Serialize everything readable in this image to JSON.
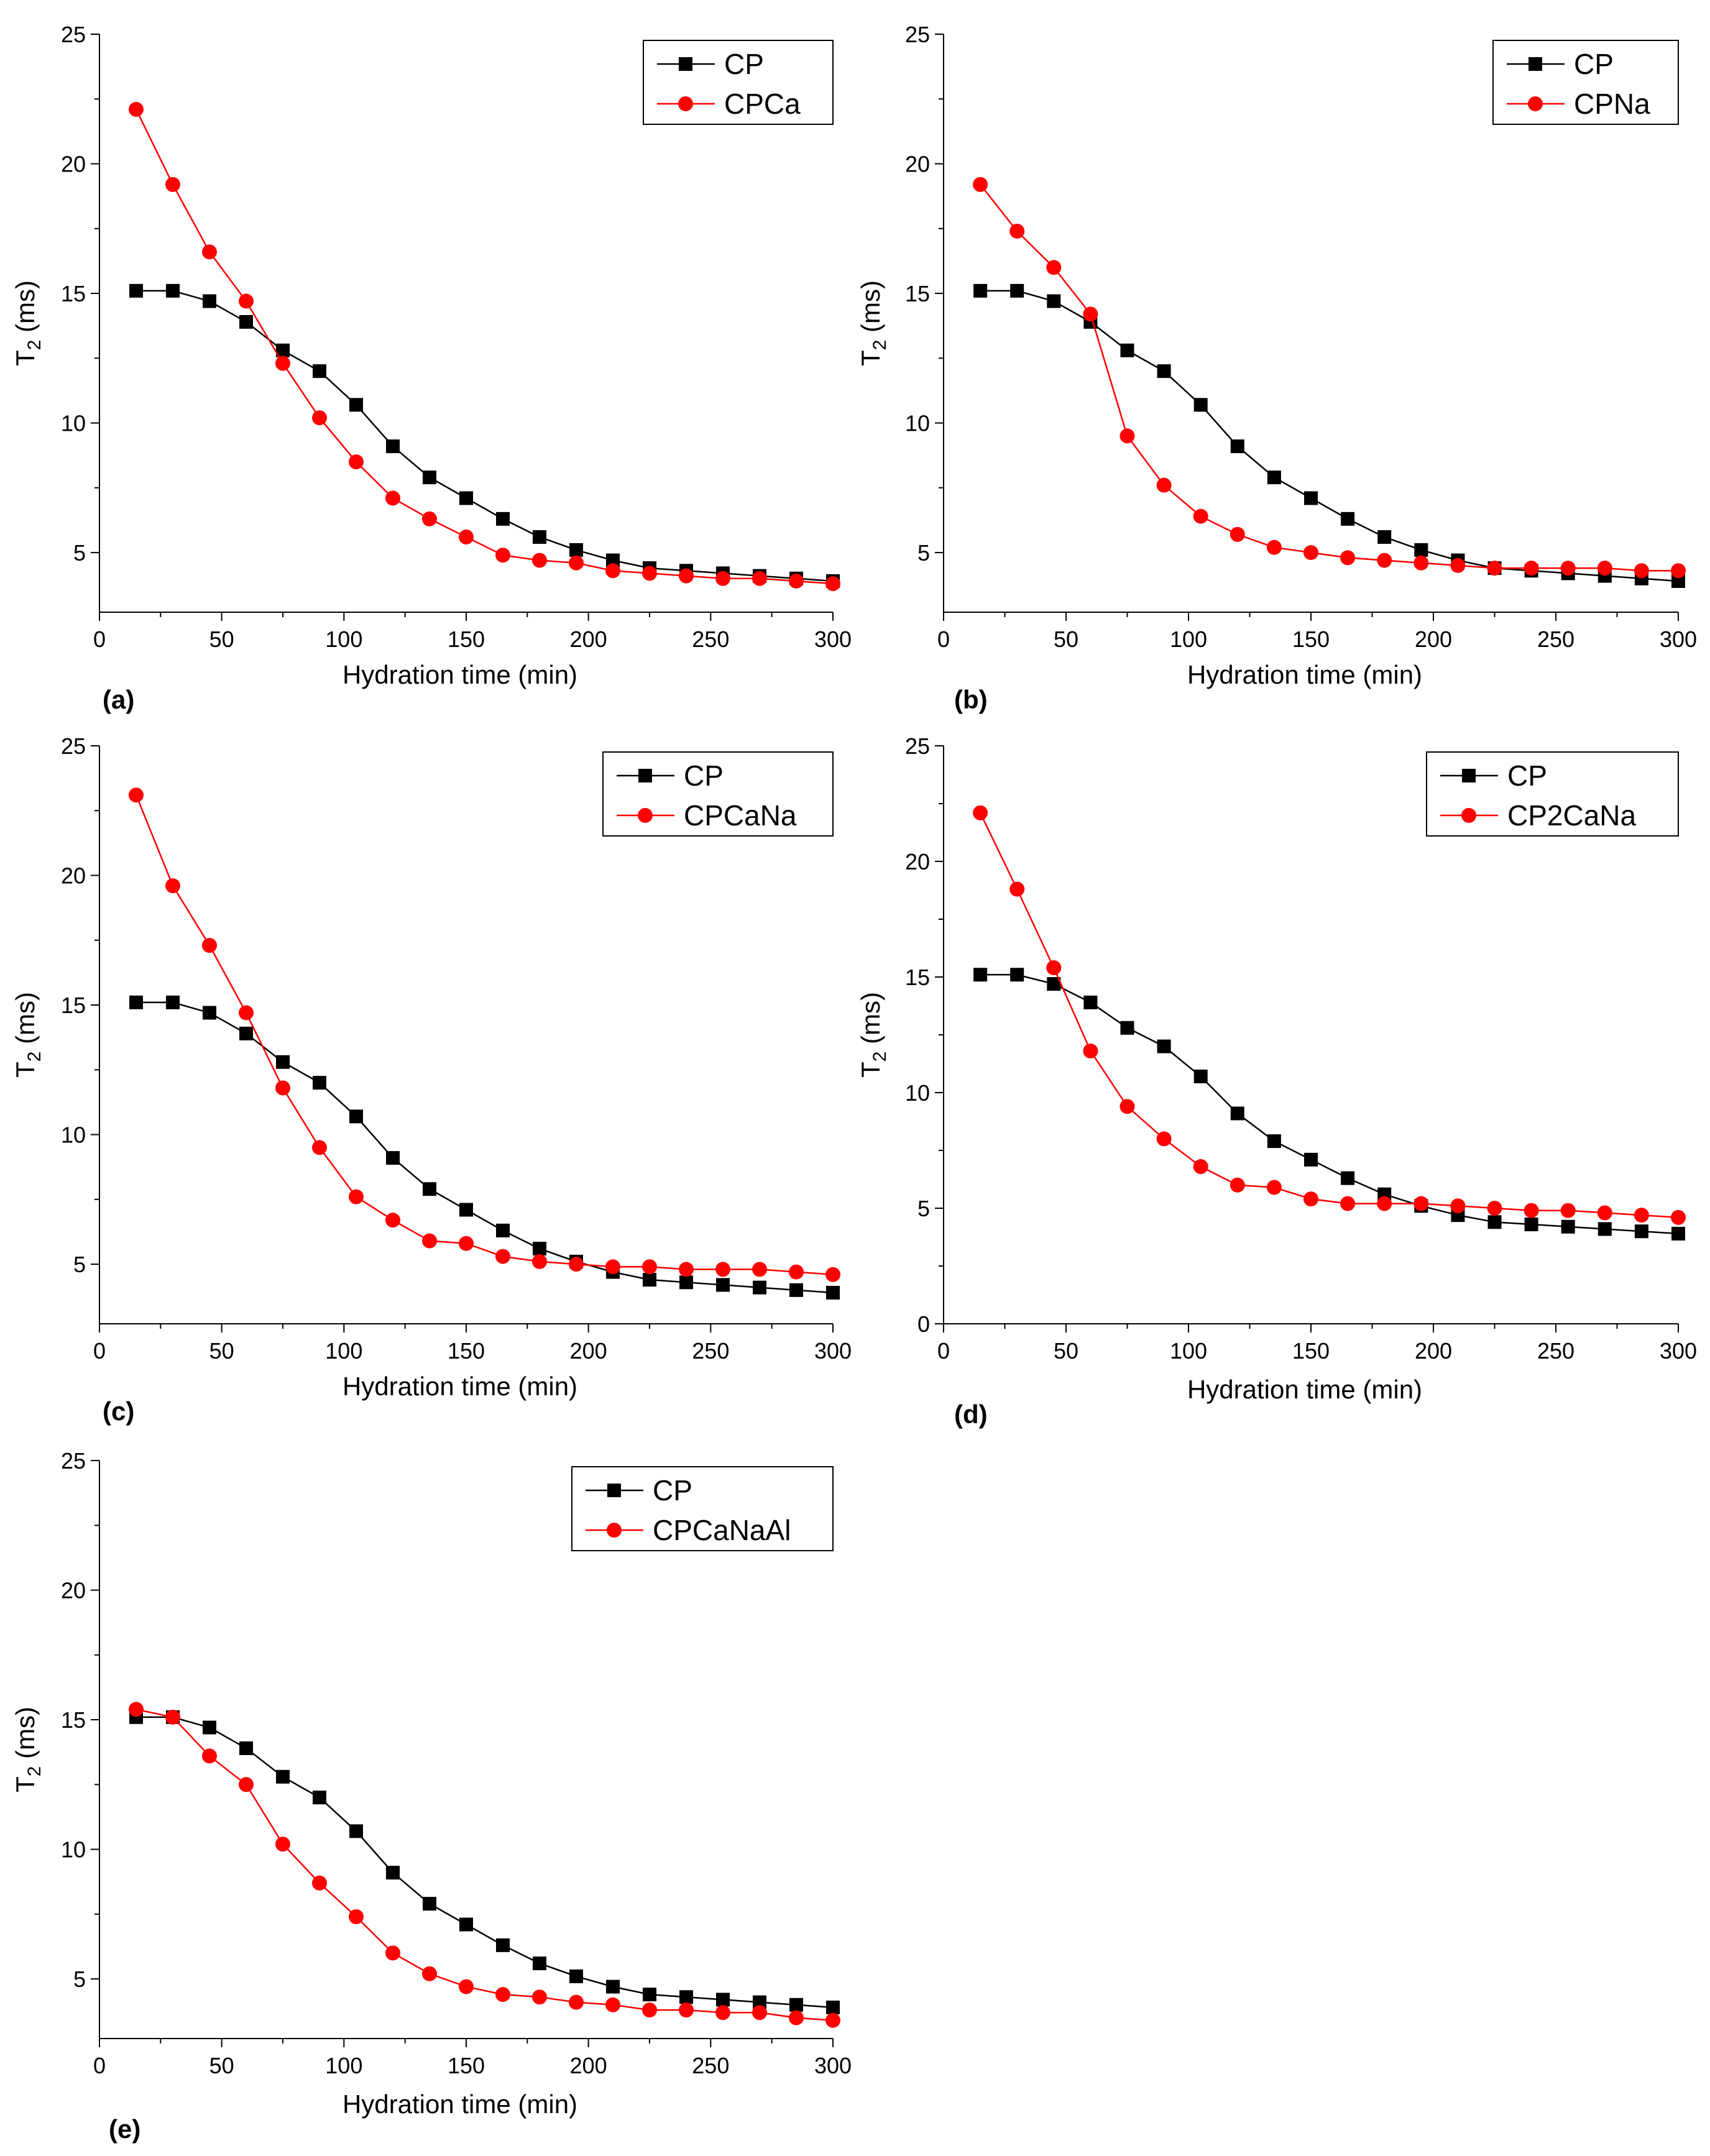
{
  "chart_data": [
    {
      "type": "line",
      "panel_label": "(a)",
      "title": "",
      "xlabel": "Hydration time (min)",
      "ylabel_main": "T",
      "ylabel_sub": "2",
      "ylabel_unit": " (ms)",
      "xlim": [
        0,
        300
      ],
      "ylim": [
        2.7,
        25
      ],
      "xticks": [
        0,
        50,
        100,
        150,
        200,
        250,
        300
      ],
      "yticks": [
        5,
        10,
        15,
        20,
        25
      ],
      "legend_position": "top-right",
      "x": [
        15,
        30,
        45,
        60,
        75,
        90,
        105,
        120,
        135,
        150,
        165,
        180,
        195,
        210,
        225,
        240,
        255,
        270,
        285,
        300
      ],
      "series": [
        {
          "name": "CP",
          "color": "#000000",
          "marker": "square",
          "values": [
            15.1,
            15.1,
            14.7,
            13.9,
            12.8,
            12.0,
            10.7,
            9.1,
            7.9,
            7.1,
            6.3,
            5.6,
            5.1,
            4.7,
            4.4,
            4.3,
            4.2,
            4.1,
            4.0,
            3.9
          ]
        },
        {
          "name": "CPCa",
          "color": "#ff0000",
          "marker": "circle",
          "values": [
            22.1,
            19.2,
            16.6,
            14.7,
            12.3,
            10.2,
            8.5,
            7.1,
            6.3,
            5.6,
            4.9,
            4.7,
            4.6,
            4.3,
            4.2,
            4.1,
            4.0,
            4.0,
            3.9,
            3.8
          ]
        }
      ]
    },
    {
      "type": "line",
      "panel_label": "(b)",
      "title": "",
      "xlabel": "Hydration time (min)",
      "ylabel_main": "T",
      "ylabel_sub": "2",
      "ylabel_unit": " (ms)",
      "xlim": [
        0,
        300
      ],
      "ylim": [
        2.7,
        25
      ],
      "xticks": [
        0,
        50,
        100,
        150,
        200,
        250,
        300
      ],
      "yticks": [
        5,
        10,
        15,
        20,
        25
      ],
      "legend_position": "top-right",
      "x": [
        15,
        30,
        45,
        60,
        75,
        90,
        105,
        120,
        135,
        150,
        165,
        180,
        195,
        210,
        225,
        240,
        255,
        270,
        285,
        300
      ],
      "series": [
        {
          "name": "CP",
          "color": "#000000",
          "marker": "square",
          "values": [
            15.1,
            15.1,
            14.7,
            13.9,
            12.8,
            12.0,
            10.7,
            9.1,
            7.9,
            7.1,
            6.3,
            5.6,
            5.1,
            4.7,
            4.4,
            4.3,
            4.2,
            4.1,
            4.0,
            3.9
          ]
        },
        {
          "name": "CPNa",
          "color": "#ff0000",
          "marker": "circle",
          "values": [
            19.2,
            17.4,
            16.0,
            14.2,
            9.5,
            7.6,
            6.4,
            5.7,
            5.2,
            5.0,
            4.8,
            4.7,
            4.6,
            4.5,
            4.4,
            4.4,
            4.4,
            4.4,
            4.3,
            4.3
          ]
        }
      ]
    },
    {
      "type": "line",
      "panel_label": "(c)",
      "title": "",
      "xlabel": "Hydration time (min)",
      "ylabel_main": "T",
      "ylabel_sub": "2",
      "ylabel_unit": " (ms)",
      "xlim": [
        0,
        300
      ],
      "ylim": [
        2.7,
        25
      ],
      "xticks": [
        0,
        50,
        100,
        150,
        200,
        250,
        300
      ],
      "yticks": [
        5,
        10,
        15,
        20,
        25
      ],
      "legend_position": "top-right",
      "x": [
        15,
        30,
        45,
        60,
        75,
        90,
        105,
        120,
        135,
        150,
        165,
        180,
        195,
        210,
        225,
        240,
        255,
        270,
        285,
        300
      ],
      "series": [
        {
          "name": "CP",
          "color": "#000000",
          "marker": "square",
          "values": [
            15.1,
            15.1,
            14.7,
            13.9,
            12.8,
            12.0,
            10.7,
            9.1,
            7.9,
            7.1,
            6.3,
            5.6,
            5.1,
            4.7,
            4.4,
            4.3,
            4.2,
            4.1,
            4.0,
            3.9
          ]
        },
        {
          "name": "CPCaNa",
          "color": "#ff0000",
          "marker": "circle",
          "values": [
            23.1,
            19.6,
            17.3,
            14.7,
            11.8,
            9.5,
            7.6,
            6.7,
            5.9,
            5.8,
            5.3,
            5.1,
            5.0,
            4.9,
            4.9,
            4.8,
            4.8,
            4.8,
            4.7,
            4.6
          ]
        }
      ]
    },
    {
      "type": "line",
      "panel_label": "(d)",
      "title": "",
      "xlabel": "Hydration time (min)",
      "ylabel_main": "T",
      "ylabel_sub": "2",
      "ylabel_unit": " (ms)",
      "xlim": [
        0,
        300
      ],
      "ylim": [
        0,
        25
      ],
      "xticks": [
        0,
        50,
        100,
        150,
        200,
        250,
        300
      ],
      "yticks": [
        0,
        5,
        10,
        15,
        20,
        25
      ],
      "legend_position": "top-right",
      "x": [
        15,
        30,
        45,
        60,
        75,
        90,
        105,
        120,
        135,
        150,
        165,
        180,
        195,
        210,
        225,
        240,
        255,
        270,
        285,
        300
      ],
      "series": [
        {
          "name": "CP",
          "color": "#000000",
          "marker": "square",
          "values": [
            15.1,
            15.1,
            14.7,
            13.9,
            12.8,
            12.0,
            10.7,
            9.1,
            7.9,
            7.1,
            6.3,
            5.6,
            5.1,
            4.7,
            4.4,
            4.3,
            4.2,
            4.1,
            4.0,
            3.9
          ]
        },
        {
          "name": "CP2CaNa",
          "color": "#ff0000",
          "marker": "circle",
          "values": [
            22.1,
            18.8,
            15.4,
            11.8,
            9.4,
            8.0,
            6.8,
            6.0,
            5.9,
            5.4,
            5.2,
            5.2,
            5.2,
            5.1,
            5.0,
            4.9,
            4.9,
            4.8,
            4.7,
            4.6
          ]
        }
      ]
    },
    {
      "type": "line",
      "panel_label": "(e)",
      "title": "",
      "xlabel": "Hydration time (min)",
      "ylabel_main": "T",
      "ylabel_sub": "2",
      "ylabel_unit": " (ms)",
      "xlim": [
        0,
        300
      ],
      "ylim": [
        2.7,
        25
      ],
      "xticks": [
        0,
        50,
        100,
        150,
        200,
        250,
        300
      ],
      "yticks": [
        5,
        10,
        15,
        20,
        25
      ],
      "legend_position": "top-right",
      "x": [
        15,
        30,
        45,
        60,
        75,
        90,
        105,
        120,
        135,
        150,
        165,
        180,
        195,
        210,
        225,
        240,
        255,
        270,
        285,
        300
      ],
      "series": [
        {
          "name": "CP",
          "color": "#000000",
          "marker": "square",
          "values": [
            15.1,
            15.1,
            14.7,
            13.9,
            12.8,
            12.0,
            10.7,
            9.1,
            7.9,
            7.1,
            6.3,
            5.6,
            5.1,
            4.7,
            4.4,
            4.3,
            4.2,
            4.1,
            4.0,
            3.9
          ]
        },
        {
          "name": "CPCaNaAl",
          "color": "#ff0000",
          "marker": "circle",
          "values": [
            15.4,
            15.1,
            13.6,
            12.5,
            10.2,
            8.7,
            7.4,
            6.0,
            5.2,
            4.7,
            4.4,
            4.3,
            4.1,
            4.0,
            3.8,
            3.8,
            3.7,
            3.7,
            3.5,
            3.4
          ]
        }
      ]
    }
  ]
}
